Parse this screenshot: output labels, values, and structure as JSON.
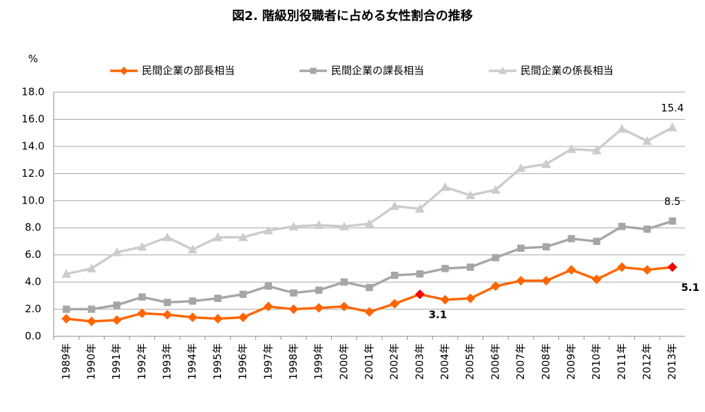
{
  "chart_data": {
    "type": "line",
    "title": "図2. 階級別役職者に占める女性割合の推移",
    "y_unit": "%",
    "categories": [
      "1989年",
      "1990年",
      "1991年",
      "1992年",
      "1993年",
      "1994年",
      "1995年",
      "1996年",
      "1997年",
      "1998年",
      "1999年",
      "2000年",
      "2001年",
      "2002年",
      "2003年",
      "2004年",
      "2005年",
      "2006年",
      "2007年",
      "2008年",
      "2009年",
      "2010年",
      "2011年",
      "2012年",
      "2013年"
    ],
    "series": [
      {
        "name": "民間企業の部長相当",
        "color": "#ff6600",
        "marker": "diamond",
        "label_color": "#ff0000",
        "highlight_color": "#ff0000",
        "values": [
          1.3,
          1.1,
          1.2,
          1.7,
          1.6,
          1.4,
          1.3,
          1.4,
          2.2,
          2.0,
          2.1,
          2.2,
          1.8,
          2.4,
          3.1,
          2.7,
          2.8,
          3.7,
          4.1,
          4.1,
          4.9,
          4.2,
          5.1,
          4.9,
          5.1
        ],
        "value_labels": [
          null,
          null,
          null,
          null,
          null,
          null,
          null,
          null,
          null,
          null,
          null,
          null,
          null,
          null,
          "3.1",
          null,
          null,
          null,
          null,
          null,
          null,
          null,
          null,
          null,
          "5.1"
        ]
      },
      {
        "name": "民間企業の課長相当",
        "color": "#a6a6a6",
        "marker": "square",
        "label_color": "#000000",
        "values": [
          2.0,
          2.0,
          2.3,
          2.9,
          2.5,
          2.6,
          2.8,
          3.1,
          3.7,
          3.2,
          3.4,
          4.0,
          3.6,
          4.5,
          4.6,
          5.0,
          5.1,
          5.8,
          6.5,
          6.6,
          7.2,
          7.0,
          8.1,
          7.9,
          8.5
        ],
        "value_labels": [
          null,
          null,
          null,
          null,
          null,
          null,
          null,
          null,
          null,
          null,
          null,
          null,
          null,
          null,
          null,
          null,
          null,
          null,
          null,
          null,
          null,
          null,
          null,
          null,
          "8.5"
        ]
      },
      {
        "name": "民間企業の係長相当",
        "color": "#cccccc",
        "marker": "triangle",
        "label_color": "#000000",
        "values": [
          4.6,
          5.0,
          6.2,
          6.6,
          7.3,
          6.4,
          7.3,
          7.3,
          7.8,
          8.1,
          8.2,
          8.1,
          8.3,
          9.6,
          9.4,
          11.0,
          10.4,
          10.8,
          12.4,
          12.7,
          13.8,
          13.7,
          15.3,
          14.4,
          15.4
        ],
        "value_labels": [
          null,
          null,
          null,
          null,
          null,
          null,
          null,
          null,
          null,
          null,
          null,
          null,
          null,
          null,
          null,
          null,
          null,
          null,
          null,
          null,
          null,
          null,
          null,
          null,
          "15.4"
        ]
      }
    ],
    "ylim": [
      0,
      18
    ],
    "yticks": [
      {
        "value": 0,
        "label": "0.0"
      },
      {
        "value": 2,
        "label": "2.0"
      },
      {
        "value": 4,
        "label": "4.0"
      },
      {
        "value": 6,
        "label": "6.0"
      },
      {
        "value": 8,
        "label": "8.0"
      },
      {
        "value": 10,
        "label": "10.0"
      },
      {
        "value": 12,
        "label": "12.0"
      },
      {
        "value": 14,
        "label": "14.0"
      },
      {
        "value": 16,
        "label": "16.0"
      },
      {
        "value": 18,
        "label": "18.0"
      }
    ],
    "grid": true
  }
}
